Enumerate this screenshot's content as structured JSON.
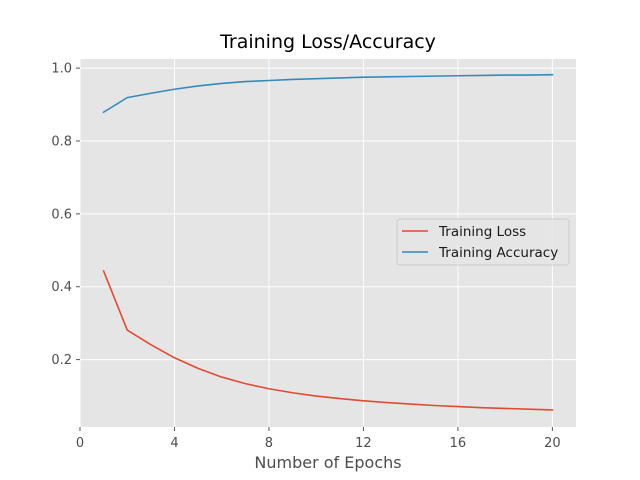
{
  "chart_data": {
    "type": "line",
    "title": "Training Loss/Accuracy",
    "xlabel": "Number of Epochs",
    "ylabel": "",
    "xlim": [
      0,
      21
    ],
    "ylim": [
      0.015,
      1.025
    ],
    "xticks": [
      0,
      4,
      8,
      12,
      16,
      20
    ],
    "yticks": [
      0.2,
      0.4,
      0.6,
      0.8,
      1.0
    ],
    "ytick_labels": [
      "0.2",
      "0.4",
      "0.6",
      "0.8",
      "1.0"
    ],
    "grid": true,
    "legend_position": "center-right",
    "background": "#e5e5e5",
    "x": [
      1,
      2,
      3,
      4,
      5,
      6,
      7,
      8,
      9,
      10,
      11,
      12,
      13,
      14,
      15,
      16,
      17,
      18,
      19,
      20
    ],
    "series": [
      {
        "name": "Training Loss",
        "color": "#e24a33",
        "values": [
          0.443,
          0.281,
          0.241,
          0.205,
          0.176,
          0.152,
          0.134,
          0.12,
          0.109,
          0.1,
          0.093,
          0.087,
          0.082,
          0.078,
          0.074,
          0.071,
          0.068,
          0.066,
          0.064,
          0.062
        ]
      },
      {
        "name": "Training Accuracy",
        "color": "#348abd",
        "values": [
          0.879,
          0.919,
          0.931,
          0.942,
          0.951,
          0.958,
          0.963,
          0.966,
          0.969,
          0.971,
          0.973,
          0.975,
          0.976,
          0.977,
          0.978,
          0.979,
          0.98,
          0.981,
          0.981,
          0.982
        ]
      }
    ]
  }
}
